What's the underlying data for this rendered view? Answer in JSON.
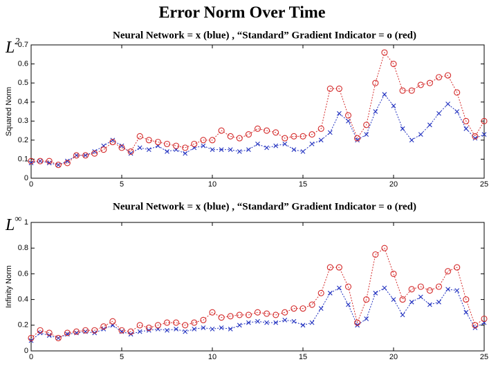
{
  "title": "Error Norm Over Time",
  "chart_data": [
    {
      "type": "line",
      "subtitle": "Neural Network = x  (blue)  , “Standard” Gradient Indicator = o (red)",
      "corner_label": "L",
      "corner_sup": "2",
      "ylabel": "Squared Norm",
      "xlim": [
        0,
        25
      ],
      "xticks": [
        0,
        5,
        10,
        15,
        20,
        25
      ],
      "ylim": [
        0,
        0.7
      ],
      "yticks": [
        0,
        0.1,
        0.2,
        0.3,
        0.4,
        0.5,
        0.6,
        0.7
      ],
      "grid": false,
      "x": [
        0,
        0.5,
        1,
        1.5,
        2,
        2.5,
        3,
        3.5,
        4,
        4.5,
        5,
        5.5,
        6,
        6.5,
        7,
        7.5,
        8,
        8.5,
        9,
        9.5,
        10,
        10.5,
        11,
        11.5,
        12,
        12.5,
        13,
        13.5,
        14,
        14.5,
        15,
        15.5,
        16,
        16.5,
        17,
        17.5,
        18,
        18.5,
        19,
        19.5,
        20,
        20.5,
        21,
        21.5,
        22,
        22.5,
        23,
        23.5,
        24,
        24.5,
        25
      ],
      "series": [
        {
          "color": "#1f2fbf",
          "marker": "x",
          "values": [
            0.08,
            0.09,
            0.08,
            0.07,
            0.09,
            0.12,
            0.12,
            0.14,
            0.17,
            0.2,
            0.17,
            0.13,
            0.16,
            0.15,
            0.17,
            0.14,
            0.15,
            0.13,
            0.16,
            0.17,
            0.15,
            0.15,
            0.15,
            0.14,
            0.15,
            0.18,
            0.16,
            0.17,
            0.18,
            0.15,
            0.14,
            0.18,
            0.2,
            0.24,
            0.34,
            0.3,
            0.2,
            0.23,
            0.35,
            0.44,
            0.38,
            0.26,
            0.2,
            0.23,
            0.28,
            0.34,
            0.39,
            0.35,
            0.26,
            0.21,
            0.23
          ]
        },
        {
          "color": "#d42a2a",
          "marker": "o",
          "values": [
            0.09,
            0.09,
            0.09,
            0.07,
            0.08,
            0.12,
            0.12,
            0.13,
            0.15,
            0.19,
            0.16,
            0.14,
            0.22,
            0.2,
            0.19,
            0.18,
            0.17,
            0.16,
            0.18,
            0.2,
            0.2,
            0.25,
            0.22,
            0.21,
            0.23,
            0.26,
            0.25,
            0.24,
            0.21,
            0.22,
            0.22,
            0.23,
            0.26,
            0.47,
            0.47,
            0.33,
            0.21,
            0.28,
            0.5,
            0.66,
            0.6,
            0.46,
            0.46,
            0.49,
            0.5,
            0.53,
            0.54,
            0.45,
            0.3,
            0.22,
            0.3
          ]
        }
      ]
    },
    {
      "type": "line",
      "subtitle": "Neural Network = x  (blue)  , “Standard” Gradient Indicator = o (red)",
      "corner_label": "L",
      "corner_sup": "∞",
      "ylabel": "Infinity Norm",
      "xlim": [
        0,
        25
      ],
      "xticks": [
        0,
        5,
        10,
        15,
        20,
        25
      ],
      "ylim": [
        0,
        1
      ],
      "yticks": [
        0,
        0.2,
        0.4,
        0.6,
        0.8,
        1
      ],
      "grid": false,
      "x": [
        0,
        0.5,
        1,
        1.5,
        2,
        2.5,
        3,
        3.5,
        4,
        4.5,
        5,
        5.5,
        6,
        6.5,
        7,
        7.5,
        8,
        8.5,
        9,
        9.5,
        10,
        10.5,
        11,
        11.5,
        12,
        12.5,
        13,
        13.5,
        14,
        14.5,
        15,
        15.5,
        16,
        16.5,
        17,
        17.5,
        18,
        18.5,
        19,
        19.5,
        20,
        20.5,
        21,
        21.5,
        22,
        22.5,
        23,
        23.5,
        24,
        24.5,
        25
      ],
      "series": [
        {
          "color": "#1f2fbf",
          "marker": "x",
          "values": [
            0.08,
            0.14,
            0.12,
            0.1,
            0.13,
            0.14,
            0.15,
            0.14,
            0.17,
            0.2,
            0.15,
            0.13,
            0.15,
            0.16,
            0.17,
            0.16,
            0.17,
            0.15,
            0.17,
            0.18,
            0.17,
            0.18,
            0.17,
            0.2,
            0.22,
            0.23,
            0.22,
            0.22,
            0.24,
            0.23,
            0.2,
            0.22,
            0.33,
            0.45,
            0.49,
            0.36,
            0.2,
            0.25,
            0.45,
            0.49,
            0.4,
            0.28,
            0.38,
            0.42,
            0.36,
            0.38,
            0.48,
            0.47,
            0.3,
            0.18,
            0.22
          ]
        },
        {
          "color": "#d42a2a",
          "marker": "o",
          "values": [
            0.1,
            0.16,
            0.14,
            0.1,
            0.14,
            0.15,
            0.16,
            0.16,
            0.19,
            0.23,
            0.16,
            0.15,
            0.2,
            0.18,
            0.2,
            0.22,
            0.22,
            0.2,
            0.22,
            0.24,
            0.3,
            0.26,
            0.27,
            0.28,
            0.28,
            0.3,
            0.29,
            0.28,
            0.3,
            0.33,
            0.33,
            0.36,
            0.45,
            0.65,
            0.65,
            0.5,
            0.22,
            0.4,
            0.75,
            0.8,
            0.6,
            0.4,
            0.48,
            0.5,
            0.47,
            0.5,
            0.62,
            0.65,
            0.4,
            0.2,
            0.25
          ]
        }
      ]
    }
  ]
}
